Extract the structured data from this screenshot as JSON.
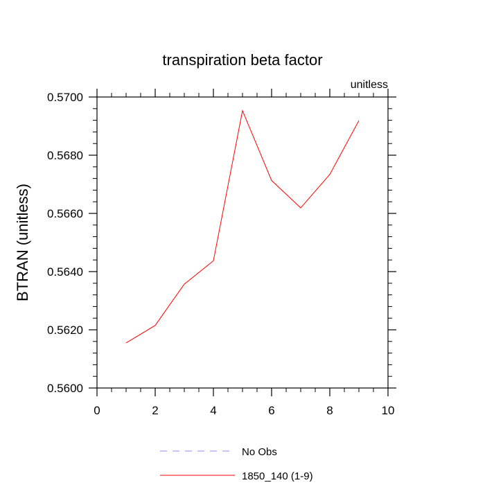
{
  "chart_data": {
    "type": "line",
    "title": "transpiration beta factor",
    "subtitle": "unitless",
    "xlabel": "",
    "ylabel": "BTRAN  (unitless)",
    "xlim": [
      0,
      10
    ],
    "ylim": [
      0.56,
      0.57
    ],
    "x_ticks": [
      0,
      2,
      4,
      6,
      8,
      10
    ],
    "x_tick_labels": [
      "0",
      "2",
      "4",
      "6",
      "8",
      "10"
    ],
    "y_ticks": [
      0.56,
      0.562,
      0.564,
      0.566,
      0.568,
      0.57
    ],
    "y_tick_labels": [
      "0.5600",
      "0.5620",
      "0.5640",
      "0.5660",
      "0.5680",
      "0.5700"
    ],
    "grid": false,
    "legend_position": "bottom",
    "series": [
      {
        "name": "1850_140 (1-9)",
        "color": "#ff0000",
        "style": "solid",
        "x": [
          1,
          2,
          3,
          4,
          5,
          6,
          7,
          8,
          9
        ],
        "y": [
          0.56155,
          0.56215,
          0.56357,
          0.56437,
          0.56953,
          0.56713,
          0.56619,
          0.56734,
          0.56919
        ]
      }
    ],
    "legend": [
      {
        "label": "No Obs",
        "color": "#8888ff",
        "style": "dashed"
      },
      {
        "label": "1850_140 (1-9)",
        "color": "#ff0000",
        "style": "solid"
      }
    ]
  }
}
